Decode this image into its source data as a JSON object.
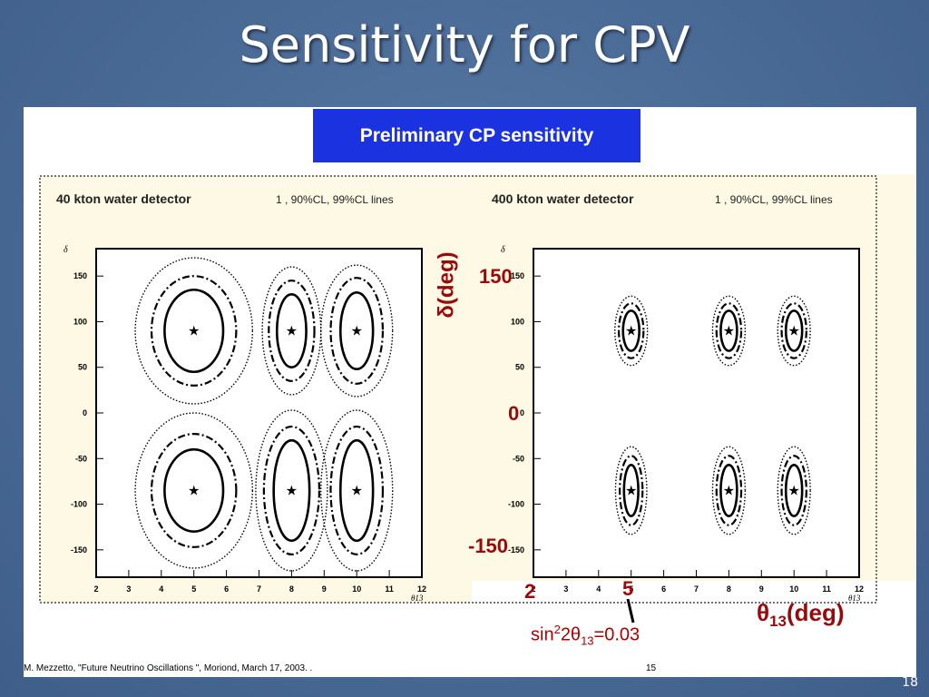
{
  "slide": {
    "title": "Sensitivity for CPV",
    "page_number": "18"
  },
  "banner": {
    "text": "Preliminary CP sensitivity"
  },
  "citation": "M. Mezzetto, \"Future Neutrino Oscillations \", Moriond, March 17, 2003. .",
  "figure_page": "15",
  "annotations": {
    "y_axis": "δ(deg)",
    "y_150": "150",
    "y_0": "0",
    "y_neg150": "-150",
    "x_2": "2",
    "x_5": "5",
    "x_axis_symbol": "θ",
    "x_axis_sub": "13",
    "x_axis_unit": "(deg)",
    "sin_prefix": "sin",
    "sin_sup": "2",
    "sin_mid": "2θ",
    "sin_sub": "13",
    "sin_value": "=0.03"
  },
  "colors": {
    "banner": "#1a32e0",
    "panel_bg": "#fdf9e4",
    "annotation": "#9b0a0a",
    "slide_bg": "#4a6a96"
  },
  "chart_data": [
    {
      "type": "contour",
      "title": "40 kton water detector",
      "subtitle": "1  , 90%CL, 99%CL lines",
      "xlabel": "θ13",
      "ylabel": "δ",
      "xlim": [
        2,
        12
      ],
      "ylim": [
        -180,
        180
      ],
      "x_ticks": [
        2,
        3,
        4,
        5,
        6,
        7,
        8,
        9,
        10,
        11,
        12
      ],
      "y_ticks": [
        150,
        100,
        50,
        0,
        -50,
        -100,
        -150
      ],
      "true_points": [
        {
          "theta13": 5,
          "delta": 90
        },
        {
          "theta13": 8,
          "delta": 90
        },
        {
          "theta13": 10,
          "delta": 90
        },
        {
          "theta13": 5,
          "delta": -85
        },
        {
          "theta13": 8,
          "delta": -85
        },
        {
          "theta13": 10,
          "delta": -85
        }
      ],
      "contour_half_widths": [
        {
          "theta13": 5,
          "delta": 90,
          "levels": [
            [
              0.9,
              45
            ],
            [
              1.3,
              60
            ],
            [
              1.8,
              80
            ]
          ]
        },
        {
          "theta13": 8,
          "delta": 90,
          "levels": [
            [
              0.45,
              40
            ],
            [
              0.7,
              55
            ],
            [
              0.9,
              70
            ]
          ]
        },
        {
          "theta13": 10,
          "delta": 90,
          "levels": [
            [
              0.5,
              42
            ],
            [
              0.8,
              58
            ],
            [
              1.1,
              72
            ]
          ]
        },
        {
          "theta13": 5,
          "delta": -85,
          "levels": [
            [
              0.9,
              45
            ],
            [
              1.3,
              62
            ],
            [
              1.8,
              85
            ]
          ]
        },
        {
          "theta13": 8,
          "delta": -85,
          "levels": [
            [
              0.55,
              55
            ],
            [
              0.85,
              70
            ],
            [
              1.1,
              88
            ]
          ]
        },
        {
          "theta13": 10,
          "delta": -85,
          "levels": [
            [
              0.5,
              55
            ],
            [
              0.8,
              70
            ],
            [
              1.1,
              88
            ]
          ]
        }
      ]
    },
    {
      "type": "contour",
      "title": "400 kton water detector",
      "subtitle": "1  , 90%CL, 99%CL lines",
      "xlabel": "θ13",
      "ylabel": "δ",
      "xlim": [
        2,
        12
      ],
      "ylim": [
        -180,
        180
      ],
      "x_ticks": [
        2,
        3,
        4,
        5,
        6,
        7,
        8,
        9,
        10,
        11,
        12
      ],
      "y_ticks": [
        150,
        100,
        50,
        0,
        -50,
        -100,
        -150
      ],
      "true_points": [
        {
          "theta13": 5,
          "delta": 90
        },
        {
          "theta13": 8,
          "delta": 90
        },
        {
          "theta13": 10,
          "delta": 90
        },
        {
          "theta13": 5,
          "delta": -85
        },
        {
          "theta13": 8,
          "delta": -85
        },
        {
          "theta13": 10,
          "delta": -85
        }
      ],
      "contour_half_widths": [
        {
          "theta13": 5,
          "delta": 90,
          "levels": [
            [
              0.25,
              22
            ],
            [
              0.38,
              30
            ],
            [
              0.5,
              38
            ]
          ]
        },
        {
          "theta13": 8,
          "delta": 90,
          "levels": [
            [
              0.25,
              22
            ],
            [
              0.38,
              30
            ],
            [
              0.5,
              38
            ]
          ]
        },
        {
          "theta13": 10,
          "delta": 90,
          "levels": [
            [
              0.25,
              22
            ],
            [
              0.38,
              30
            ],
            [
              0.5,
              38
            ]
          ]
        },
        {
          "theta13": 5,
          "delta": -85,
          "levels": [
            [
              0.22,
              28
            ],
            [
              0.35,
              38
            ],
            [
              0.48,
              48
            ]
          ]
        },
        {
          "theta13": 8,
          "delta": -85,
          "levels": [
            [
              0.25,
              28
            ],
            [
              0.38,
              38
            ],
            [
              0.5,
              48
            ]
          ]
        },
        {
          "theta13": 10,
          "delta": -85,
          "levels": [
            [
              0.25,
              28
            ],
            [
              0.38,
              38
            ],
            [
              0.5,
              48
            ]
          ]
        }
      ]
    }
  ]
}
